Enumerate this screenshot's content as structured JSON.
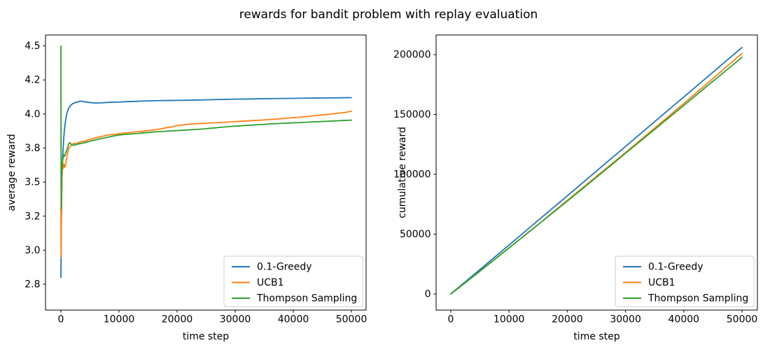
{
  "figure": {
    "title": "rewards for bandit problem with replay evaluation",
    "background": "#ffffff",
    "frame_color": "#000000",
    "legend_border_color": "#cccccc"
  },
  "palette": {
    "greedy_blue": "#1f77b4",
    "ucb1_orange": "#ff7f0e",
    "thompson_green": "#2ca02c"
  },
  "chart_data": [
    {
      "type": "line",
      "name": "average-reward-panel",
      "xlabel": "time step",
      "ylabel": "average reward",
      "grid": false,
      "legend_position": "lower right",
      "xlim": [
        -2650,
        52530
      ],
      "ylim": [
        2.56,
        4.58
      ],
      "xticks": [
        0,
        10000,
        20000,
        30000,
        40000,
        50000
      ],
      "xtick_labels": [
        "0",
        "10000",
        "20000",
        "30000",
        "40000",
        "50000"
      ],
      "yticks": [
        2.75,
        3.0,
        3.25,
        3.5,
        3.75,
        4.0,
        4.25,
        4.5
      ],
      "ytick_labels": [
        "2.8",
        "3.0",
        "3.2",
        "3.5",
        "3.8",
        "4.0",
        "4.2",
        "4.5"
      ],
      "series": [
        {
          "name": "0.1-Greedy",
          "color": "#1f77b4",
          "points": [
            [
              0,
              2.8
            ],
            [
              60,
              3.1
            ],
            [
              120,
              3.35
            ],
            [
              200,
              3.55
            ],
            [
              300,
              3.68
            ],
            [
              450,
              3.8
            ],
            [
              600,
              3.88
            ],
            [
              800,
              3.95
            ],
            [
              1000,
              4.0
            ],
            [
              1300,
              4.04
            ],
            [
              1600,
              4.06
            ],
            [
              2000,
              4.075
            ],
            [
              2400,
              4.082
            ],
            [
              2800,
              4.088
            ],
            [
              3200,
              4.092
            ],
            [
              3600,
              4.095
            ],
            [
              4000,
              4.09
            ],
            [
              4400,
              4.087
            ],
            [
              4800,
              4.085
            ],
            [
              5500,
              4.082
            ],
            [
              6200,
              4.08
            ],
            [
              7000,
              4.082
            ],
            [
              8000,
              4.085
            ],
            [
              9000,
              4.087
            ],
            [
              10000,
              4.088
            ],
            [
              11000,
              4.09
            ],
            [
              12500,
              4.092
            ],
            [
              14000,
              4.095
            ],
            [
              15500,
              4.097
            ],
            [
              17000,
              4.098
            ],
            [
              18500,
              4.099
            ],
            [
              20000,
              4.1
            ],
            [
              22000,
              4.101
            ],
            [
              24000,
              4.103
            ],
            [
              26000,
              4.105
            ],
            [
              28000,
              4.107
            ],
            [
              30000,
              4.109
            ],
            [
              32000,
              4.11
            ],
            [
              34000,
              4.112
            ],
            [
              36000,
              4.113
            ],
            [
              38000,
              4.114
            ],
            [
              40000,
              4.115
            ],
            [
              42000,
              4.116
            ],
            [
              44000,
              4.117
            ],
            [
              46000,
              4.118
            ],
            [
              48000,
              4.119
            ],
            [
              50000,
              4.12
            ]
          ]
        },
        {
          "name": "UCB1",
          "color": "#ff7f0e",
          "points": [
            [
              0,
              3.3
            ],
            [
              30,
              2.95
            ],
            [
              80,
              3.25
            ],
            [
              150,
              3.5
            ],
            [
              250,
              3.6
            ],
            [
              350,
              3.64
            ],
            [
              450,
              3.6
            ],
            [
              550,
              3.63
            ],
            [
              700,
              3.61
            ],
            [
              850,
              3.64
            ],
            [
              1000,
              3.68
            ],
            [
              1200,
              3.72
            ],
            [
              1400,
              3.75
            ],
            [
              1600,
              3.76
            ],
            [
              1800,
              3.77
            ],
            [
              2000,
              3.78
            ],
            [
              2300,
              3.785
            ],
            [
              2600,
              3.78
            ],
            [
              3000,
              3.79
            ],
            [
              3400,
              3.795
            ],
            [
              3800,
              3.8
            ],
            [
              4200,
              3.8
            ],
            [
              4700,
              3.81
            ],
            [
              5200,
              3.815
            ],
            [
              6000,
              3.825
            ],
            [
              7000,
              3.835
            ],
            [
              8000,
              3.845
            ],
            [
              9000,
              3.85
            ],
            [
              10000,
              3.855
            ],
            [
              11000,
              3.86
            ],
            [
              12000,
              3.865
            ],
            [
              13000,
              3.87
            ],
            [
              14000,
              3.873
            ],
            [
              15000,
              3.878
            ],
            [
              16000,
              3.883
            ],
            [
              17000,
              3.89
            ],
            [
              18000,
              3.898
            ],
            [
              19000,
              3.905
            ],
            [
              20000,
              3.915
            ],
            [
              21000,
              3.92
            ],
            [
              22000,
              3.925
            ],
            [
              23000,
              3.928
            ],
            [
              24000,
              3.93
            ],
            [
              25500,
              3.933
            ],
            [
              27000,
              3.937
            ],
            [
              28500,
              3.94
            ],
            [
              30000,
              3.944
            ],
            [
              31500,
              3.948
            ],
            [
              33000,
              3.952
            ],
            [
              34500,
              3.955
            ],
            [
              36000,
              3.96
            ],
            [
              37500,
              3.964
            ],
            [
              39000,
              3.97
            ],
            [
              40500,
              3.975
            ],
            [
              42000,
              3.98
            ],
            [
              43500,
              3.987
            ],
            [
              45000,
              3.993
            ],
            [
              46500,
              4.0
            ],
            [
              48000,
              4.007
            ],
            [
              49000,
              4.012
            ],
            [
              50000,
              4.02
            ]
          ]
        },
        {
          "name": "Thompson Sampling",
          "color": "#2ca02c",
          "points": [
            [
              0,
              4.5
            ],
            [
              40,
              3.3
            ],
            [
              90,
              3.5
            ],
            [
              150,
              3.58
            ],
            [
              220,
              3.63
            ],
            [
              300,
              3.66
            ],
            [
              400,
              3.68
            ],
            [
              500,
              3.7
            ],
            [
              600,
              3.69
            ],
            [
              750,
              3.7
            ],
            [
              900,
              3.72
            ],
            [
              1050,
              3.74
            ],
            [
              1200,
              3.76
            ],
            [
              1350,
              3.78
            ],
            [
              1500,
              3.79
            ],
            [
              1700,
              3.78
            ],
            [
              1900,
              3.775
            ],
            [
              2100,
              3.77
            ],
            [
              2400,
              3.772
            ],
            [
              2700,
              3.776
            ],
            [
              3000,
              3.78
            ],
            [
              3400,
              3.783
            ],
            [
              3800,
              3.787
            ],
            [
              4200,
              3.79
            ],
            [
              4600,
              3.795
            ],
            [
              5000,
              3.8
            ],
            [
              5500,
              3.805
            ],
            [
              6000,
              3.81
            ],
            [
              6800,
              3.818
            ],
            [
              7600,
              3.825
            ],
            [
              8400,
              3.832
            ],
            [
              9200,
              3.84
            ],
            [
              10000,
              3.845
            ],
            [
              11000,
              3.85
            ],
            [
              12000,
              3.853
            ],
            [
              13000,
              3.856
            ],
            [
              14000,
              3.86
            ],
            [
              15000,
              3.864
            ],
            [
              16000,
              3.868
            ],
            [
              17500,
              3.872
            ],
            [
              19000,
              3.876
            ],
            [
              20000,
              3.878
            ],
            [
              21500,
              3.882
            ],
            [
              23000,
              3.886
            ],
            [
              24500,
              3.89
            ],
            [
              26000,
              3.896
            ],
            [
              27500,
              3.902
            ],
            [
              29000,
              3.908
            ],
            [
              30500,
              3.912
            ],
            [
              32000,
              3.916
            ],
            [
              33500,
              3.92
            ],
            [
              35000,
              3.924
            ],
            [
              36500,
              3.928
            ],
            [
              38000,
              3.931
            ],
            [
              39500,
              3.934
            ],
            [
              41000,
              3.937
            ],
            [
              42500,
              3.94
            ],
            [
              44000,
              3.943
            ],
            [
              45500,
              3.946
            ],
            [
              47000,
              3.949
            ],
            [
              48500,
              3.952
            ],
            [
              50000,
              3.955
            ]
          ]
        }
      ]
    },
    {
      "type": "line",
      "name": "cumulative-reward-panel",
      "xlabel": "time step",
      "ylabel": "cumulative reward",
      "grid": false,
      "legend_position": "lower right",
      "xlim": [
        -2520,
        52640
      ],
      "ylim": [
        -13450,
        216400
      ],
      "xticks": [
        0,
        10000,
        20000,
        30000,
        40000,
        50000
      ],
      "xtick_labels": [
        "0",
        "10000",
        "20000",
        "30000",
        "40000",
        "50000"
      ],
      "yticks": [
        0,
        50000,
        100000,
        150000,
        200000
      ],
      "ytick_labels": [
        "0",
        "50000",
        "100000",
        "150000",
        "200000"
      ],
      "series": [
        {
          "name": "0.1-Greedy",
          "color": "#1f77b4",
          "points": [
            [
              0,
              0
            ],
            [
              5000,
              20400
            ],
            [
              10000,
              40900
            ],
            [
              15000,
              61500
            ],
            [
              20000,
              82000
            ],
            [
              25000,
              102700
            ],
            [
              30000,
              123300
            ],
            [
              35000,
              144000
            ],
            [
              40000,
              164600
            ],
            [
              45000,
              185300
            ],
            [
              50000,
              206000
            ]
          ]
        },
        {
          "name": "UCB1",
          "color": "#ff7f0e",
          "points": [
            [
              0,
              0
            ],
            [
              5000,
              19100
            ],
            [
              10000,
              38500
            ],
            [
              15000,
              58100
            ],
            [
              20000,
              78200
            ],
            [
              25000,
              98200
            ],
            [
              30000,
              118200
            ],
            [
              35000,
              138600
            ],
            [
              40000,
              159200
            ],
            [
              45000,
              180000
            ],
            [
              50000,
              201000
            ]
          ]
        },
        {
          "name": "Thompson Sampling",
          "color": "#2ca02c",
          "points": [
            [
              0,
              0
            ],
            [
              5000,
              19000
            ],
            [
              10000,
              38500
            ],
            [
              15000,
              58000
            ],
            [
              20000,
              77600
            ],
            [
              25000,
              97500
            ],
            [
              30000,
              117600
            ],
            [
              35000,
              137500
            ],
            [
              40000,
              157600
            ],
            [
              45000,
              177700
            ],
            [
              50000,
              197800
            ]
          ]
        }
      ]
    }
  ]
}
